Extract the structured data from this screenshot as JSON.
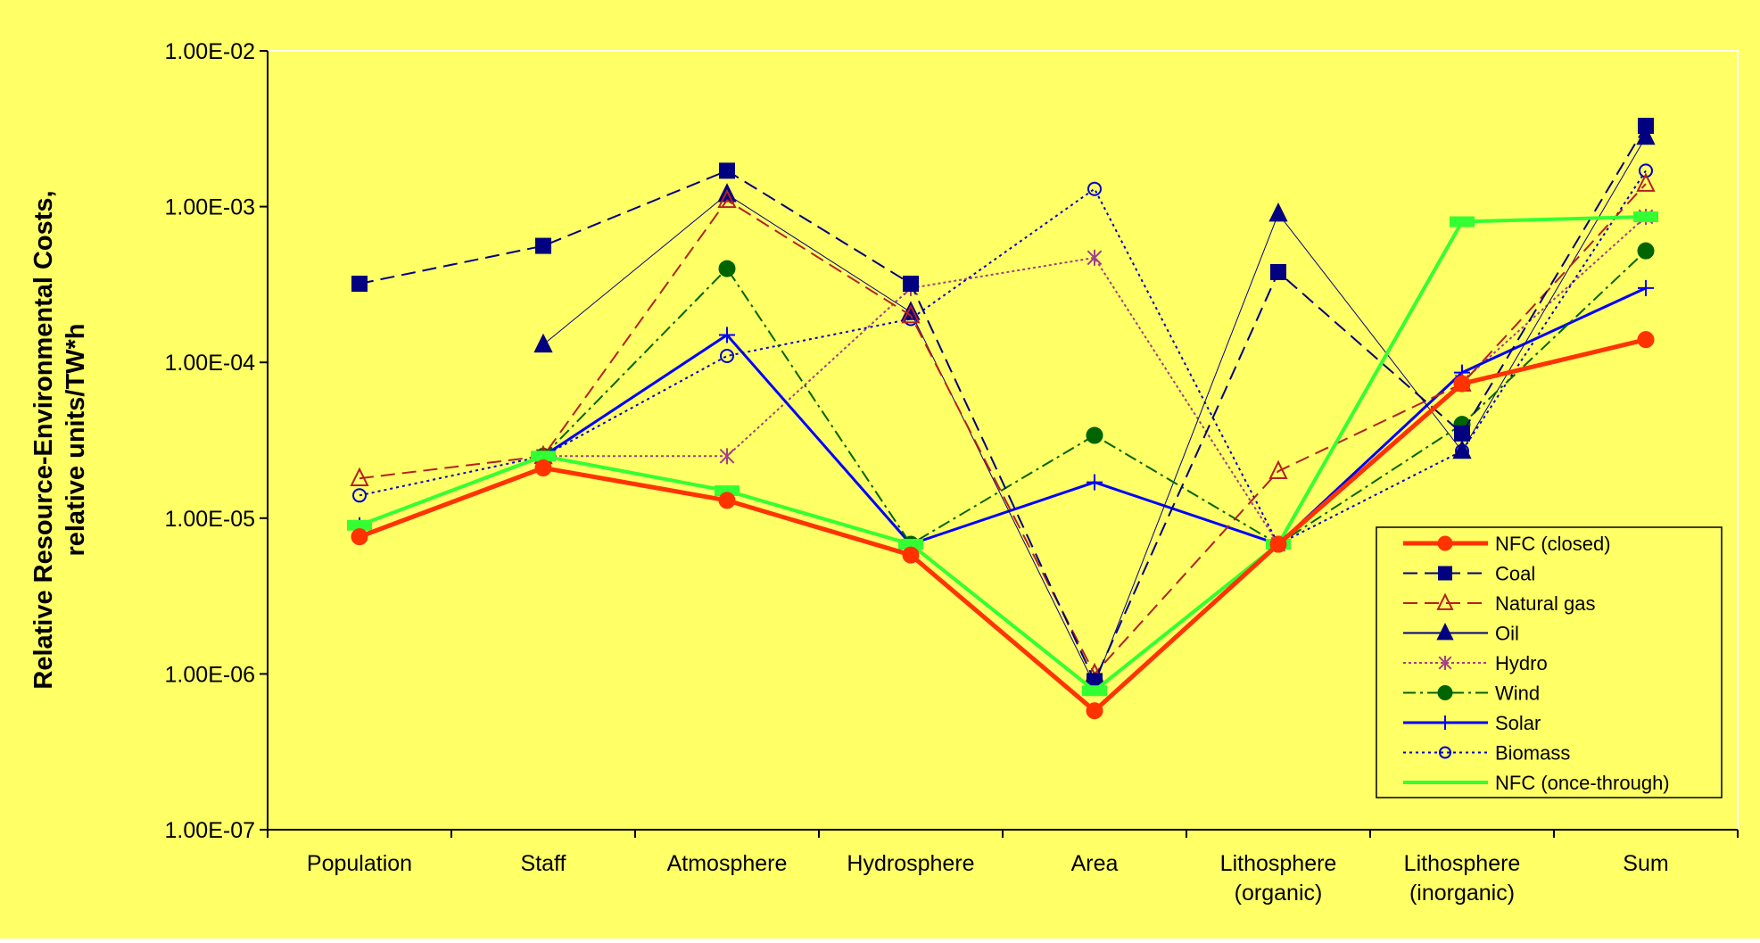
{
  "chart_data": {
    "type": "line",
    "y_scale": "log",
    "ylim": [
      1e-07,
      0.01
    ],
    "yticks": [
      "1.00E-07",
      "1.00E-06",
      "1.00E-05",
      "1.00E-04",
      "1.00E-03",
      "1.00E-02"
    ],
    "ylabel_line1": "Relative Resource-Environmental Costs,",
    "ylabel_line2": "relative units/TW*h",
    "categories": [
      [
        "Population"
      ],
      [
        "Staff"
      ],
      [
        "Atmosphere"
      ],
      [
        "Hydrosphere"
      ],
      [
        "Area"
      ],
      [
        "Lithosphere",
        "(organic)"
      ],
      [
        "Lithosphere",
        "(inorganic)"
      ],
      [
        "Sum"
      ]
    ],
    "legend_position": "lower-right",
    "grid": false,
    "colors": {
      "plot_background": "#ffff66",
      "outer_background": "#ffff66"
    },
    "series": [
      {
        "name": "NFC (closed)",
        "color": "#ff3300",
        "dash": "",
        "width": 5,
        "marker": "circle-filled",
        "values": [
          7.6e-06,
          2.1e-05,
          1.3e-05,
          5.8e-06,
          5.8e-07,
          6.8e-06,
          7.3e-05,
          0.00014
        ]
      },
      {
        "name": "Coal",
        "color": "#000080",
        "dash": "16,8",
        "width": 2,
        "marker": "square-filled",
        "values": [
          0.00032,
          0.00056,
          0.0017,
          0.00032,
          9e-07,
          0.00038,
          3.5e-05,
          0.0033
        ]
      },
      {
        "name": "Natural gas",
        "color": "#b22222",
        "dash": "16,8",
        "width": 2,
        "marker": "triangle-open",
        "values": [
          1.8e-05,
          2.5e-05,
          0.0011,
          0.0002,
          1e-06,
          2e-05,
          7.3e-05,
          0.0014
        ]
      },
      {
        "name": "Oil",
        "color": "#000080",
        "dash": "",
        "width": 1,
        "marker": "triangle-filled",
        "values": [
          null,
          0.00013,
          0.0012,
          0.00021,
          8.5e-07,
          0.0009,
          2.7e-05,
          0.0028
        ]
      },
      {
        "name": "Hydro",
        "color": "#a0408a",
        "dash": "3,3",
        "width": 2,
        "marker": "asterisk",
        "values": [
          null,
          2.5e-05,
          2.5e-05,
          0.0003,
          0.00047,
          6.8e-06,
          7.5e-05,
          0.00086
        ]
      },
      {
        "name": "Wind",
        "color": "#006400",
        "dash": "14,5,3,5",
        "width": 2,
        "marker": "circle-filled",
        "values": [
          null,
          2.5e-05,
          0.0004,
          6.8e-06,
          3.4e-05,
          6.8e-06,
          4e-05,
          0.00052
        ]
      },
      {
        "name": "Solar",
        "color": "#0000ff",
        "dash": "",
        "width": 3,
        "marker": "plus",
        "values": [
          9e-06,
          2.5e-05,
          0.00015,
          6.8e-06,
          1.7e-05,
          6.8e-06,
          8.6e-05,
          0.0003
        ]
      },
      {
        "name": "Biomass",
        "color": "#0000cc",
        "dash": "3,4",
        "width": 2,
        "marker": "circle-open",
        "values": [
          1.4e-05,
          2.5e-05,
          0.00011,
          0.00019,
          0.0013,
          6.8e-06,
          2.7e-05,
          0.0017
        ]
      },
      {
        "name": "NFC (once-through)",
        "color": "#33ff33",
        "dash": "",
        "width": 4,
        "marker": "square-filled",
        "values": [
          9e-06,
          2.5e-05,
          1.5e-05,
          6.8e-06,
          7.8e-07,
          6.8e-06,
          0.0008,
          0.00086
        ]
      }
    ]
  }
}
